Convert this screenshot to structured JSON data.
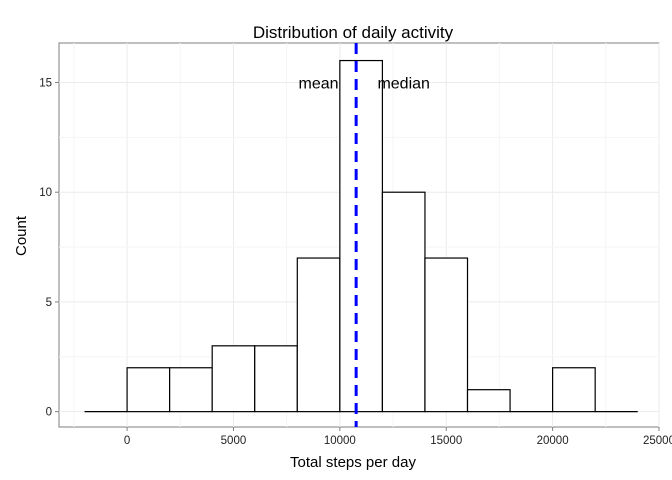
{
  "chart_data": {
    "type": "bar",
    "title": "Distribution of daily activity",
    "xlabel": "Total steps per day",
    "ylabel": "Count",
    "bin_width": 2000,
    "bins": [
      {
        "start": -2000,
        "end": 0,
        "count": 0
      },
      {
        "start": 0,
        "end": 2000,
        "count": 2
      },
      {
        "start": 2000,
        "end": 4000,
        "count": 2
      },
      {
        "start": 4000,
        "end": 6000,
        "count": 3
      },
      {
        "start": 6000,
        "end": 8000,
        "count": 3
      },
      {
        "start": 8000,
        "end": 10000,
        "count": 7
      },
      {
        "start": 10000,
        "end": 12000,
        "count": 16
      },
      {
        "start": 12000,
        "end": 14000,
        "count": 10
      },
      {
        "start": 14000,
        "end": 16000,
        "count": 7
      },
      {
        "start": 16000,
        "end": 18000,
        "count": 1
      },
      {
        "start": 18000,
        "end": 20000,
        "count": 0
      },
      {
        "start": 20000,
        "end": 22000,
        "count": 2
      },
      {
        "start": 22000,
        "end": 24000,
        "count": 0
      }
    ],
    "xlim": [
      -3200,
      25000
    ],
    "ylim": [
      -0.7,
      16.8
    ],
    "x_ticks": [
      0,
      5000,
      10000,
      15000,
      20000,
      25000
    ],
    "y_ticks": [
      0,
      5,
      10,
      15
    ],
    "vline": {
      "x": 10766,
      "color": "#0000ff",
      "style": "dashed"
    },
    "annotations": [
      {
        "text": "mean",
        "x": 9000,
        "y": 15
      },
      {
        "text": "median",
        "x": 13000,
        "y": 15
      }
    ],
    "grid": true,
    "bar_fill": "#ffffff",
    "bar_stroke": "#000000"
  }
}
